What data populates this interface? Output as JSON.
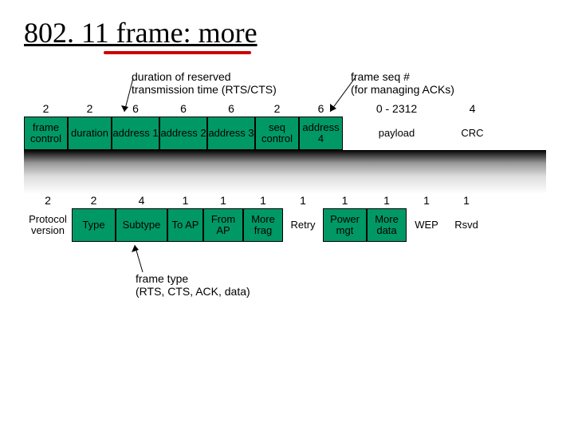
{
  "title": "802. 11 frame: more",
  "annot_duration": "duration of reserved\ntransmission time (RTS/CTS)",
  "annot_seq": "frame seq #\n(for managing ACKs)",
  "annot_frametype": "frame type\n(RTS, CTS, ACK, data)",
  "colors": {
    "cell_bg": "#009966",
    "red": "#cc0000"
  },
  "frame1": {
    "sizes": [
      "2",
      "2",
      "6",
      "6",
      "6",
      "2",
      "6",
      "0 - 2312",
      "4"
    ],
    "widths": [
      55,
      55,
      60,
      60,
      60,
      55,
      55,
      135,
      55
    ],
    "labels": [
      "frame control",
      "duration",
      "address 1",
      "address 2",
      "address 3",
      "seq control",
      "address 4",
      "payload",
      "CRC"
    ]
  },
  "frame2": {
    "sizes": [
      "2",
      "2",
      "4",
      "1",
      "1",
      "1",
      "1",
      "1",
      "1",
      "1",
      "1"
    ],
    "widths": [
      60,
      55,
      65,
      45,
      50,
      50,
      50,
      55,
      50,
      50,
      50
    ],
    "labels": [
      "Protocol version",
      "Type",
      "Subtype",
      "To AP",
      "From AP",
      "More frag",
      "Retry",
      "Power mgt",
      "More data",
      "WEP",
      "Rsvd"
    ]
  }
}
